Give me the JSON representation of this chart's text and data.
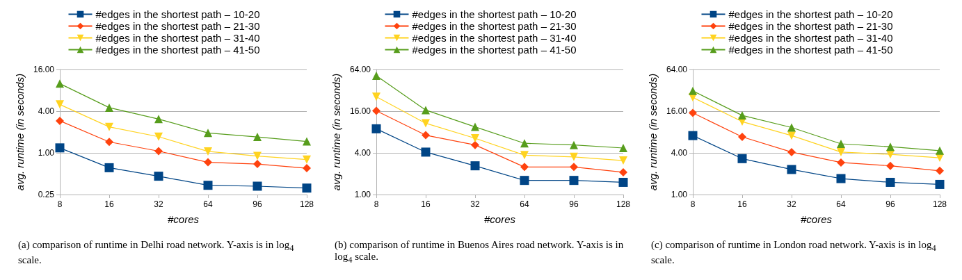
{
  "chart_data": [
    {
      "type": "line",
      "categories": [
        "8",
        "16",
        "32",
        "64",
        "96",
        "128"
      ],
      "xlabel": "#cores",
      "ylabel": "avg. runtime (in seconds)",
      "log": true,
      "ylim": [
        0.25,
        16
      ],
      "yticks": [
        {
          "value": 0.25,
          "label": "0.25"
        },
        {
          "value": 1,
          "label": "1.00"
        },
        {
          "value": 4,
          "label": "4.00"
        },
        {
          "value": 16,
          "label": "16.00"
        }
      ],
      "grid": "y",
      "legend": "top",
      "annotations": [
        "(a) comparison of runtime in Delhi road network. Y-axis is in log$_{4}$ scale."
      ],
      "series": [
        {
          "name": "#edges in the shortest path – 10-20",
          "color": "#004586",
          "marker": "square",
          "values": [
            1.18,
            0.61,
            0.46,
            0.34,
            0.33,
            0.31
          ]
        },
        {
          "name": "#edges in the shortest path – 21-30",
          "color": "#ff420e",
          "marker": "diamond",
          "values": [
            2.9,
            1.44,
            1.06,
            0.73,
            0.69,
            0.6
          ]
        },
        {
          "name": "#edges in the shortest path – 31-40",
          "color": "#ffd320",
          "marker": "triangle-down",
          "values": [
            5.0,
            2.37,
            1.71,
            1.05,
            0.9,
            0.8
          ]
        },
        {
          "name": "#edges in the shortest path – 41-50",
          "color": "#579d1c",
          "marker": "triangle",
          "values": [
            10.0,
            4.5,
            3.08,
            1.94,
            1.7,
            1.46
          ]
        }
      ]
    },
    {
      "type": "line",
      "categories": [
        "8",
        "16",
        "32",
        "64",
        "96",
        "128"
      ],
      "xlabel": "#cores",
      "ylabel": "avg. runtime (in seconds)",
      "log": true,
      "ylim": [
        1,
        64
      ],
      "yticks": [
        {
          "value": 1,
          "label": "1.00"
        },
        {
          "value": 4,
          "label": "4.00"
        },
        {
          "value": 16,
          "label": "16.00"
        },
        {
          "value": 64,
          "label": "64.00"
        }
      ],
      "grid": "y",
      "legend": "top",
      "annotations": [
        "(b) comparison of runtime in Buenos Aires road network. Y-axis is in log$_{4}$ scale."
      ],
      "series": [
        {
          "name": "#edges in the shortest path – 10-20",
          "color": "#004586",
          "marker": "square",
          "values": [
            8.9,
            4.1,
            2.6,
            1.6,
            1.6,
            1.5
          ]
        },
        {
          "name": "#edges in the shortest path – 21-30",
          "color": "#ff420e",
          "marker": "diamond",
          "values": [
            16.2,
            7.2,
            5.2,
            2.5,
            2.5,
            2.1
          ]
        },
        {
          "name": "#edges in the shortest path – 31-40",
          "color": "#ffd320",
          "marker": "triangle-down",
          "values": [
            25.8,
            10.7,
            6.5,
            3.7,
            3.5,
            3.1
          ]
        },
        {
          "name": "#edges in the shortest path – 41-50",
          "color": "#579d1c",
          "marker": "triangle",
          "values": [
            52,
            16.6,
            9.5,
            5.5,
            5.2,
            4.7
          ]
        }
      ]
    },
    {
      "type": "line",
      "categories": [
        "8",
        "16",
        "32",
        "64",
        "96",
        "128"
      ],
      "xlabel": "#cores",
      "ylabel": "avg. runtime (in seconds)",
      "log": true,
      "ylim": [
        1,
        64
      ],
      "yticks": [
        {
          "value": 1,
          "label": "1.00"
        },
        {
          "value": 4,
          "label": "4.00"
        },
        {
          "value": 16,
          "label": "16.00"
        },
        {
          "value": 64,
          "label": "64.00"
        }
      ],
      "grid": "y",
      "legend": "top",
      "annotations": [
        "(c) comparison of runtime in London road network. Y-axis is in log$_{4}$ scale."
      ],
      "series": [
        {
          "name": "#edges in the shortest path – 10-20",
          "color": "#004586",
          "marker": "square",
          "values": [
            7.1,
            3.3,
            2.3,
            1.7,
            1.5,
            1.4
          ]
        },
        {
          "name": "#edges in the shortest path – 21-30",
          "color": "#ff420e",
          "marker": "diamond",
          "values": [
            15.1,
            6.8,
            4.1,
            2.9,
            2.6,
            2.2
          ]
        },
        {
          "name": "#edges in the shortest path – 31-40",
          "color": "#ffd320",
          "marker": "triangle-down",
          "values": [
            25.3,
            11.3,
            7.1,
            4.1,
            3.8,
            3.4
          ]
        },
        {
          "name": "#edges in the shortest path – 41-50",
          "color": "#579d1c",
          "marker": "triangle",
          "values": [
            31.4,
            13.9,
            9.3,
            5.4,
            4.9,
            4.3
          ]
        }
      ]
    }
  ]
}
